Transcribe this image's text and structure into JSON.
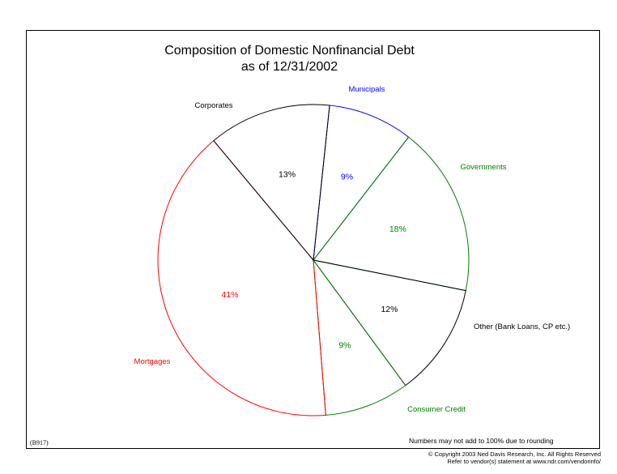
{
  "chart_data": {
    "type": "pie",
    "title": "Composition of Domestic Nonfinancial Debt",
    "subtitle": "as of 12/31/2002",
    "slices": [
      {
        "name": "Municipals",
        "value": 9,
        "label": "9%",
        "color": "#0000ff"
      },
      {
        "name": "Governments",
        "value": 18,
        "label": "18%",
        "color": "#008000"
      },
      {
        "name": "Other (Bank Loans, CP etc.)",
        "value": 12,
        "label": "12%",
        "color": "#000000"
      },
      {
        "name": "Consumer Credit",
        "value": 9,
        "label": "9%",
        "color": "#008000"
      },
      {
        "name": "Mortgages",
        "value": 41,
        "label": "41%",
        "color": "#ff0000"
      },
      {
        "name": "Corporates",
        "value": 13,
        "label": "13%",
        "color": "#000000"
      }
    ]
  },
  "footer": {
    "code": "(B917)",
    "note": "Numbers may not add to 100% due to rounding",
    "copyright": "© Copyright 2003 Ned Davis Research, Inc. All Rights Reserved",
    "vendor": "Refer to vendor(s) statement at www.ndr.com/vendorinfo/"
  }
}
